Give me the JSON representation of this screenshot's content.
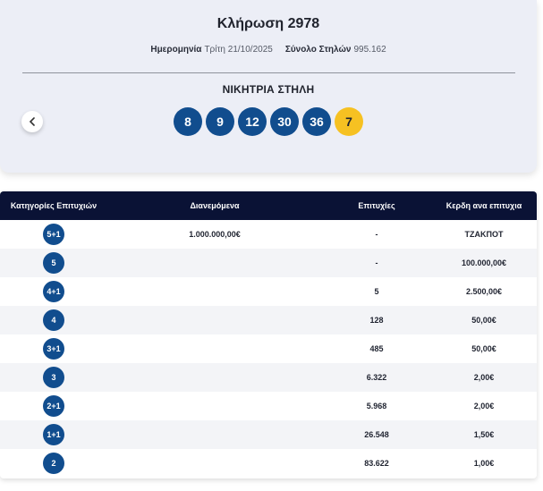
{
  "draw": {
    "title": "Κλήρωση 2978",
    "date_label": "Ημερομηνία",
    "date_value": "Τρίτη 21/10/2025",
    "columns_label": "Σύνολο Στηλών",
    "columns_value": "995.162",
    "winning_label": "ΝΙΚΗΤΡΙΑ ΣΤΗΛΗ",
    "numbers": [
      "8",
      "9",
      "12",
      "30",
      "36"
    ],
    "bonus": "7",
    "prev_icon": "chevron-left-icon"
  },
  "table": {
    "headers": {
      "category": "Κατηγορίες Επιτυχιών",
      "distributed": "Διανεμόμενα",
      "winners": "Επιτυχίες",
      "prize": "Κερδη ανα επιτυχια"
    },
    "rows": [
      {
        "category": "5+1",
        "distributed": "1.000.000,00€",
        "winners": "-",
        "prize": "ΤΖΑΚΠΟΤ"
      },
      {
        "category": "5",
        "distributed": "",
        "winners": "-",
        "prize": "100.000,00€"
      },
      {
        "category": "4+1",
        "distributed": "",
        "winners": "5",
        "prize": "2.500,00€"
      },
      {
        "category": "4",
        "distributed": "",
        "winners": "128",
        "prize": "50,00€"
      },
      {
        "category": "3+1",
        "distributed": "",
        "winners": "485",
        "prize": "50,00€"
      },
      {
        "category": "3",
        "distributed": "",
        "winners": "6.322",
        "prize": "2,00€"
      },
      {
        "category": "2+1",
        "distributed": "",
        "winners": "5.968",
        "prize": "2,00€"
      },
      {
        "category": "1+1",
        "distributed": "",
        "winners": "26.548",
        "prize": "1,50€"
      },
      {
        "category": "2",
        "distributed": "",
        "winners": "83.622",
        "prize": "1,00€"
      }
    ]
  },
  "colors": {
    "ball": "#114d8e",
    "bonus_ball": "#f6c122",
    "header_bg": "#0a1235",
    "card_bg": "#eceef6"
  }
}
